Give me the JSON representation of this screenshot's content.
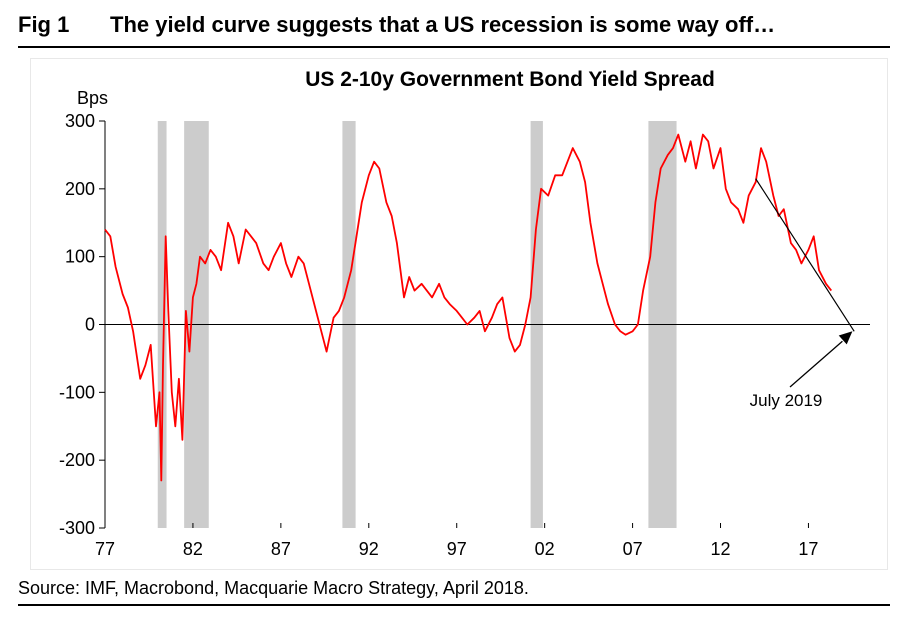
{
  "header": {
    "fig_label": "Fig 1",
    "fig_title": "The yield curve suggests that a US recession is some way off…"
  },
  "source": "Source: IMF, Macrobond, Macquarie Macro Strategy, April 2018.",
  "chart_data": {
    "type": "line",
    "title": "US 2-10y Government Bond Yield Spread",
    "ylabel": "Bps",
    "xlabel": "",
    "xlim": [
      1977,
      2020.5
    ],
    "ylim": [
      -300,
      300
    ],
    "x_ticks": [
      {
        "value": 1977,
        "label": "77"
      },
      {
        "value": 1982,
        "label": "82"
      },
      {
        "value": 1987,
        "label": "87"
      },
      {
        "value": 1992,
        "label": "92"
      },
      {
        "value": 1997,
        "label": "97"
      },
      {
        "value": 2002,
        "label": "02"
      },
      {
        "value": 2007,
        "label": "07"
      },
      {
        "value": 2012,
        "label": "12"
      },
      {
        "value": 2017,
        "label": "17"
      }
    ],
    "y_ticks": [
      {
        "value": 300,
        "label": "300"
      },
      {
        "value": 200,
        "label": "200"
      },
      {
        "value": 100,
        "label": "100"
      },
      {
        "value": 0,
        "label": "0"
      },
      {
        "value": -100,
        "label": "-100"
      },
      {
        "value": -200,
        "label": "-200"
      },
      {
        "value": -300,
        "label": "-300"
      }
    ],
    "grid": false,
    "colors": {
      "series": "#ff0000",
      "recession": "#cccccc",
      "trend": "#000000"
    },
    "recessions": [
      {
        "start": 1980.0,
        "end": 1980.5
      },
      {
        "start": 1981.5,
        "end": 1982.9
      },
      {
        "start": 1990.5,
        "end": 1991.25
      },
      {
        "start": 2001.2,
        "end": 2001.9
      },
      {
        "start": 2007.9,
        "end": 2009.5
      }
    ],
    "series": [
      {
        "x": [
          1977.0,
          1977.3,
          1977.6,
          1978.0,
          1978.3,
          1978.6,
          1979.0,
          1979.3,
          1979.6,
          1979.9,
          1980.1,
          1980.2,
          1980.3,
          1980.45,
          1980.6,
          1980.8,
          1981.0,
          1981.2,
          1981.4,
          1981.6,
          1981.8,
          1982.0,
          1982.2,
          1982.4,
          1982.7,
          1983.0,
          1983.3,
          1983.6,
          1984.0,
          1984.3,
          1984.6,
          1985.0,
          1985.3,
          1985.6,
          1986.0,
          1986.3,
          1986.6,
          1987.0,
          1987.3,
          1987.6,
          1988.0,
          1988.3,
          1988.6,
          1989.0,
          1989.3,
          1989.6,
          1990.0,
          1990.3,
          1990.6,
          1991.0,
          1991.3,
          1991.6,
          1992.0,
          1992.3,
          1992.6,
          1993.0,
          1993.3,
          1993.6,
          1994.0,
          1994.3,
          1994.6,
          1995.0,
          1995.3,
          1995.6,
          1996.0,
          1996.3,
          1996.6,
          1997.0,
          1997.3,
          1997.6,
          1998.0,
          1998.3,
          1998.6,
          1999.0,
          1999.3,
          1999.6,
          2000.0,
          2000.3,
          2000.6,
          2000.9,
          2001.2,
          2001.5,
          2001.8,
          2002.2,
          2002.6,
          2003.0,
          2003.3,
          2003.6,
          2004.0,
          2004.3,
          2004.6,
          2005.0,
          2005.3,
          2005.6,
          2006.0,
          2006.3,
          2006.6,
          2007.0,
          2007.3,
          2007.6,
          2008.0,
          2008.3,
          2008.6,
          2009.0,
          2009.3,
          2009.6,
          2010.0,
          2010.3,
          2010.6,
          2011.0,
          2011.3,
          2011.6,
          2012.0,
          2012.3,
          2012.6,
          2013.0,
          2013.3,
          2013.6,
          2014.0,
          2014.3,
          2014.6,
          2015.0,
          2015.3,
          2015.6,
          2016.0,
          2016.3,
          2016.6,
          2017.0,
          2017.3,
          2017.6,
          2018.0,
          2018.3
        ],
        "values": [
          140,
          130,
          85,
          45,
          25,
          -10,
          -80,
          -60,
          -30,
          -150,
          -100,
          -230,
          -60,
          130,
          20,
          -100,
          -150,
          -80,
          -170,
          20,
          -40,
          40,
          60,
          100,
          90,
          110,
          100,
          80,
          150,
          130,
          90,
          140,
          130,
          120,
          90,
          80,
          100,
          120,
          90,
          70,
          100,
          90,
          60,
          20,
          -10,
          -40,
          10,
          20,
          40,
          80,
          130,
          180,
          220,
          240,
          230,
          180,
          160,
          120,
          40,
          70,
          50,
          60,
          50,
          40,
          60,
          40,
          30,
          20,
          10,
          0,
          10,
          20,
          -10,
          10,
          30,
          40,
          -20,
          -40,
          -30,
          0,
          40,
          140,
          200,
          190,
          220,
          220,
          240,
          260,
          240,
          210,
          150,
          90,
          60,
          30,
          0,
          -10,
          -15,
          -10,
          0,
          50,
          100,
          180,
          230,
          250,
          260,
          280,
          240,
          270,
          230,
          280,
          270,
          230,
          260,
          200,
          180,
          170,
          150,
          190,
          210,
          260,
          240,
          190,
          160,
          170,
          120,
          110,
          90,
          110,
          130,
          80,
          60,
          50
        ]
      }
    ],
    "trend": {
      "start": [
        2014.0,
        215
      ],
      "end": [
        2019.6,
        -10
      ]
    },
    "annotations": [
      {
        "text": "July 2019",
        "point_at": [
          2019.5,
          -10
        ]
      }
    ]
  }
}
